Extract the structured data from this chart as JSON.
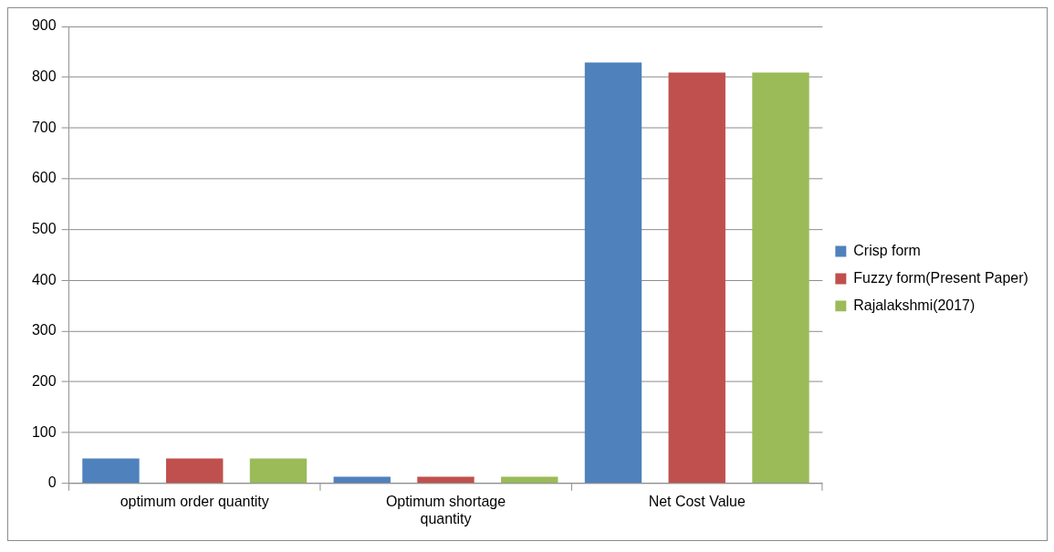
{
  "chart_data": {
    "type": "bar",
    "categories": [
      "optimum order quantity",
      "Optimum shortage quantity",
      "Net Cost Value"
    ],
    "series": [
      {
        "name": "Crisp form",
        "color": "#4f81bd",
        "values": [
          49,
          13,
          829
        ]
      },
      {
        "name": "Fuzzy form(Present Paper)",
        "color": "#c0504d",
        "values": [
          49,
          13,
          809
        ]
      },
      {
        "name": "Rajalakshmi(2017)",
        "color": "#9bbb59",
        "values": [
          49,
          13,
          809
        ]
      }
    ],
    "ylim": [
      0,
      900
    ],
    "yticks": [
      0,
      100,
      200,
      300,
      400,
      500,
      600,
      700,
      800,
      900
    ],
    "grid": "y",
    "legend": "right"
  }
}
